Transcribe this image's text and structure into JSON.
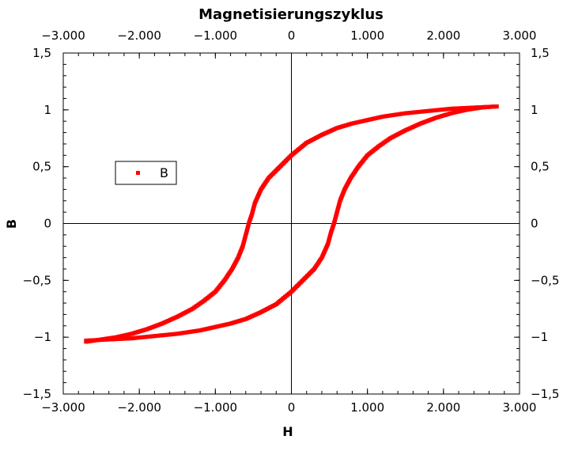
{
  "chart_data": {
    "type": "scatter",
    "title": "Magnetisierungszyklus",
    "xlabel": "H",
    "ylabel": "B",
    "xlim": [
      -3000,
      3000
    ],
    "ylim": [
      -1.5,
      1.5
    ],
    "x_ticks": [
      -3000,
      -2000,
      -1000,
      0,
      1000,
      2000,
      3000
    ],
    "x_tick_labels": [
      "−3.000",
      "−2.000",
      "−1.000",
      "0",
      "1.000",
      "2.000",
      "3.000"
    ],
    "y_ticks": [
      -1.5,
      -1,
      -0.5,
      0,
      0.5,
      1,
      1.5
    ],
    "y_tick_labels": [
      "−1,5",
      "−1",
      "−0,5",
      "0",
      "0,5",
      "1",
      "1,5"
    ],
    "grid": false,
    "zero_lines": true,
    "legend": {
      "placement": "left",
      "entries": [
        "B"
      ]
    },
    "series": [
      {
        "name": "B",
        "color": "#ff0000",
        "branches": [
          {
            "label": "descending",
            "points": [
              [
                2700,
                1.03
              ],
              [
                2400,
                1.02
              ],
              [
                2100,
                1.01
              ],
              [
                1800,
                0.99
              ],
              [
                1500,
                0.97
              ],
              [
                1200,
                0.94
              ],
              [
                1000,
                0.91
              ],
              [
                800,
                0.88
              ],
              [
                600,
                0.84
              ],
              [
                400,
                0.78
              ],
              [
                200,
                0.71
              ],
              [
                0,
                0.6
              ],
              [
                -150,
                0.5
              ],
              [
                -300,
                0.4
              ],
              [
                -400,
                0.3
              ],
              [
                -480,
                0.18
              ],
              [
                -520,
                0.08
              ],
              [
                -560,
                0.0
              ],
              [
                -600,
                -0.1
              ],
              [
                -640,
                -0.2
              ],
              [
                -700,
                -0.3
              ],
              [
                -780,
                -0.4
              ],
              [
                -880,
                -0.5
              ],
              [
                -1000,
                -0.6
              ],
              [
                -1150,
                -0.68
              ],
              [
                -1300,
                -0.75
              ],
              [
                -1500,
                -0.82
              ],
              [
                -1700,
                -0.88
              ],
              [
                -1900,
                -0.93
              ],
              [
                -2100,
                -0.97
              ],
              [
                -2300,
                -1.0
              ],
              [
                -2500,
                -1.02
              ],
              [
                -2700,
                -1.04
              ]
            ]
          },
          {
            "label": "ascending",
            "points": [
              [
                -2700,
                -1.03
              ],
              [
                -2400,
                -1.02
              ],
              [
                -2100,
                -1.01
              ],
              [
                -1800,
                -0.99
              ],
              [
                -1500,
                -0.97
              ],
              [
                -1200,
                -0.94
              ],
              [
                -1000,
                -0.91
              ],
              [
                -800,
                -0.88
              ],
              [
                -600,
                -0.84
              ],
              [
                -400,
                -0.78
              ],
              [
                -200,
                -0.71
              ],
              [
                0,
                -0.6
              ],
              [
                150,
                -0.5
              ],
              [
                300,
                -0.4
              ],
              [
                400,
                -0.3
              ],
              [
                480,
                -0.18
              ],
              [
                520,
                -0.08
              ],
              [
                560,
                0.0
              ],
              [
                600,
                0.1
              ],
              [
                640,
                0.2
              ],
              [
                700,
                0.3
              ],
              [
                780,
                0.4
              ],
              [
                880,
                0.5
              ],
              [
                1000,
                0.6
              ],
              [
                1150,
                0.68
              ],
              [
                1300,
                0.75
              ],
              [
                1500,
                0.82
              ],
              [
                1700,
                0.88
              ],
              [
                1900,
                0.93
              ],
              [
                2100,
                0.97
              ],
              [
                2300,
                1.0
              ],
              [
                2500,
                1.02
              ],
              [
                2700,
                1.03
              ]
            ]
          }
        ]
      }
    ]
  }
}
